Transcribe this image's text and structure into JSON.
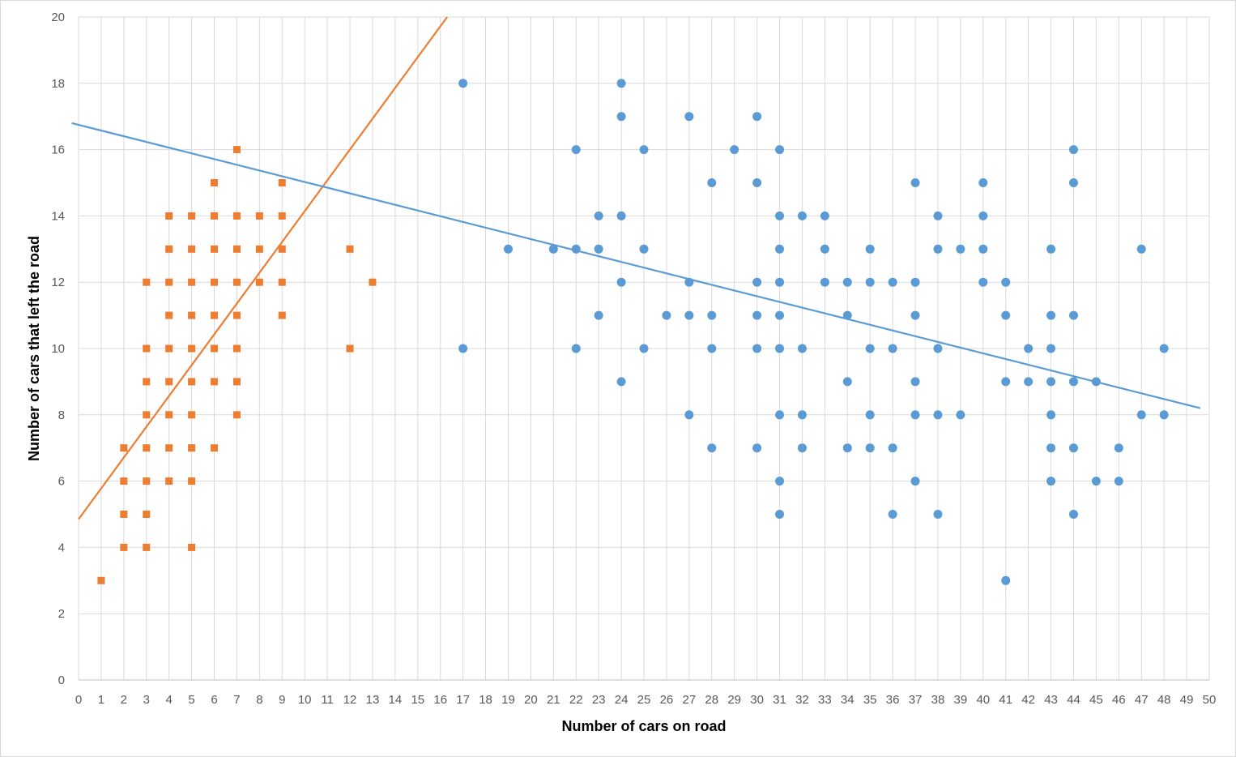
{
  "chart_data": {
    "type": "scatter",
    "xlabel": "Number of cars on road",
    "ylabel": "Number of cars that left the road",
    "xlim": [
      0,
      50
    ],
    "ylim": [
      0,
      20
    ],
    "x_ticks": [
      0,
      1,
      2,
      3,
      4,
      5,
      6,
      7,
      8,
      9,
      10,
      11,
      12,
      13,
      14,
      15,
      16,
      17,
      18,
      19,
      20,
      21,
      22,
      23,
      24,
      25,
      26,
      27,
      28,
      29,
      30,
      31,
      32,
      33,
      34,
      35,
      36,
      37,
      38,
      39,
      40,
      41,
      42,
      43,
      44,
      45,
      46,
      47,
      48,
      49,
      50
    ],
    "y_ticks": [
      0,
      2,
      4,
      6,
      8,
      10,
      12,
      14,
      16,
      18,
      20
    ],
    "grid": true,
    "legend": "none",
    "series": [
      {
        "marker": "square",
        "color": "#ed7d31",
        "points": [
          [
            1,
            3
          ],
          [
            2,
            4
          ],
          [
            2,
            5
          ],
          [
            2,
            6
          ],
          [
            2,
            7
          ],
          [
            3,
            4
          ],
          [
            3,
            5
          ],
          [
            3,
            6
          ],
          [
            3,
            7
          ],
          [
            3,
            8
          ],
          [
            3,
            9
          ],
          [
            3,
            10
          ],
          [
            3,
            12
          ],
          [
            4,
            6
          ],
          [
            4,
            7
          ],
          [
            4,
            8
          ],
          [
            4,
            9
          ],
          [
            4,
            10
          ],
          [
            4,
            11
          ],
          [
            4,
            12
          ],
          [
            4,
            13
          ],
          [
            4,
            14
          ],
          [
            5,
            4
          ],
          [
            5,
            6
          ],
          [
            5,
            7
          ],
          [
            5,
            8
          ],
          [
            5,
            9
          ],
          [
            5,
            10
          ],
          [
            5,
            11
          ],
          [
            5,
            12
          ],
          [
            5,
            13
          ],
          [
            5,
            14
          ],
          [
            6,
            7
          ],
          [
            6,
            9
          ],
          [
            6,
            10
          ],
          [
            6,
            11
          ],
          [
            6,
            12
          ],
          [
            6,
            13
          ],
          [
            6,
            14
          ],
          [
            6,
            15
          ],
          [
            7,
            8
          ],
          [
            7,
            9
          ],
          [
            7,
            10
          ],
          [
            7,
            11
          ],
          [
            7,
            12
          ],
          [
            7,
            13
          ],
          [
            7,
            14
          ],
          [
            7,
            16
          ],
          [
            8,
            12
          ],
          [
            8,
            13
          ],
          [
            8,
            14
          ],
          [
            9,
            11
          ],
          [
            9,
            12
          ],
          [
            9,
            13
          ],
          [
            9,
            14
          ],
          [
            9,
            15
          ],
          [
            12,
            10
          ],
          [
            12,
            13
          ],
          [
            13,
            12
          ]
        ],
        "trendline": {
          "color": "#ed7d31",
          "x": [
            0,
            16.3
          ],
          "y": [
            4.85,
            20
          ]
        }
      },
      {
        "marker": "circle",
        "color": "#5b9bd5",
        "points": [
          [
            17,
            10
          ],
          [
            17,
            18
          ],
          [
            19,
            13
          ],
          [
            21,
            13
          ],
          [
            22,
            10
          ],
          [
            22,
            13
          ],
          [
            22,
            16
          ],
          [
            23,
            11
          ],
          [
            23,
            13
          ],
          [
            23,
            14
          ],
          [
            24,
            9
          ],
          [
            24,
            12
          ],
          [
            24,
            14
          ],
          [
            24,
            17
          ],
          [
            24,
            18
          ],
          [
            25,
            10
          ],
          [
            25,
            13
          ],
          [
            25,
            16
          ],
          [
            26,
            11
          ],
          [
            27,
            8
          ],
          [
            27,
            11
          ],
          [
            27,
            12
          ],
          [
            27,
            17
          ],
          [
            28,
            7
          ],
          [
            28,
            10
          ],
          [
            28,
            11
          ],
          [
            28,
            15
          ],
          [
            29,
            16
          ],
          [
            30,
            7
          ],
          [
            30,
            10
          ],
          [
            30,
            11
          ],
          [
            30,
            12
          ],
          [
            30,
            15
          ],
          [
            30,
            17
          ],
          [
            31,
            5
          ],
          [
            31,
            6
          ],
          [
            31,
            8
          ],
          [
            31,
            10
          ],
          [
            31,
            11
          ],
          [
            31,
            12
          ],
          [
            31,
            13
          ],
          [
            31,
            14
          ],
          [
            31,
            16
          ],
          [
            32,
            7
          ],
          [
            32,
            8
          ],
          [
            32,
            10
          ],
          [
            32,
            14
          ],
          [
            33,
            12
          ],
          [
            33,
            13
          ],
          [
            33,
            14
          ],
          [
            34,
            7
          ],
          [
            34,
            9
          ],
          [
            34,
            11
          ],
          [
            34,
            12
          ],
          [
            35,
            7
          ],
          [
            35,
            8
          ],
          [
            35,
            10
          ],
          [
            35,
            12
          ],
          [
            35,
            13
          ],
          [
            36,
            5
          ],
          [
            36,
            7
          ],
          [
            36,
            10
          ],
          [
            36,
            12
          ],
          [
            37,
            6
          ],
          [
            37,
            8
          ],
          [
            37,
            9
          ],
          [
            37,
            11
          ],
          [
            37,
            12
          ],
          [
            37,
            15
          ],
          [
            38,
            5
          ],
          [
            38,
            8
          ],
          [
            38,
            10
          ],
          [
            38,
            13
          ],
          [
            38,
            14
          ],
          [
            39,
            8
          ],
          [
            39,
            13
          ],
          [
            40,
            12
          ],
          [
            40,
            13
          ],
          [
            40,
            14
          ],
          [
            40,
            15
          ],
          [
            41,
            3
          ],
          [
            41,
            9
          ],
          [
            41,
            11
          ],
          [
            41,
            12
          ],
          [
            42,
            9
          ],
          [
            42,
            10
          ],
          [
            43,
            6
          ],
          [
            43,
            7
          ],
          [
            43,
            8
          ],
          [
            43,
            9
          ],
          [
            43,
            10
          ],
          [
            43,
            11
          ],
          [
            43,
            13
          ],
          [
            44,
            5
          ],
          [
            44,
            7
          ],
          [
            44,
            9
          ],
          [
            44,
            11
          ],
          [
            44,
            15
          ],
          [
            44,
            16
          ],
          [
            45,
            6
          ],
          [
            45,
            9
          ],
          [
            46,
            6
          ],
          [
            46,
            7
          ],
          [
            47,
            8
          ],
          [
            47,
            13
          ],
          [
            48,
            8
          ],
          [
            48,
            10
          ]
        ],
        "trendline": {
          "color": "#5b9bd5",
          "x": [
            -0.3,
            49.6
          ],
          "y": [
            16.8,
            8.2
          ]
        }
      }
    ]
  }
}
